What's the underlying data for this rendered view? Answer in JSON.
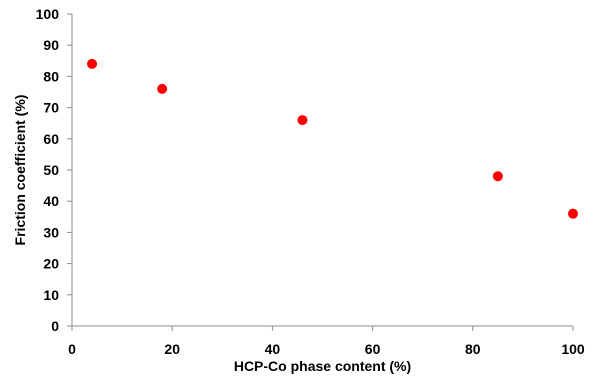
{
  "chart_data": {
    "type": "scatter",
    "title": "",
    "xlabel": "HCP-Co phase content (%)",
    "ylabel": "Friction coefficient (%)",
    "xlim": [
      0,
      100
    ],
    "ylim": [
      0,
      100
    ],
    "x_ticks": [
      "0",
      "20",
      "40",
      "60",
      "80",
      "100"
    ],
    "y_ticks": [
      "0",
      "10",
      "20",
      "30",
      "40",
      "50",
      "60",
      "70",
      "80",
      "90",
      "100"
    ],
    "grid": false,
    "legend": "none",
    "series": [
      {
        "color": "#ff0000",
        "points": [
          {
            "x": 4,
            "y": 84
          },
          {
            "x": 18,
            "y": 76
          },
          {
            "x": 46,
            "y": 66
          },
          {
            "x": 85,
            "y": 48
          },
          {
            "x": 100,
            "y": 36
          }
        ]
      }
    ]
  }
}
